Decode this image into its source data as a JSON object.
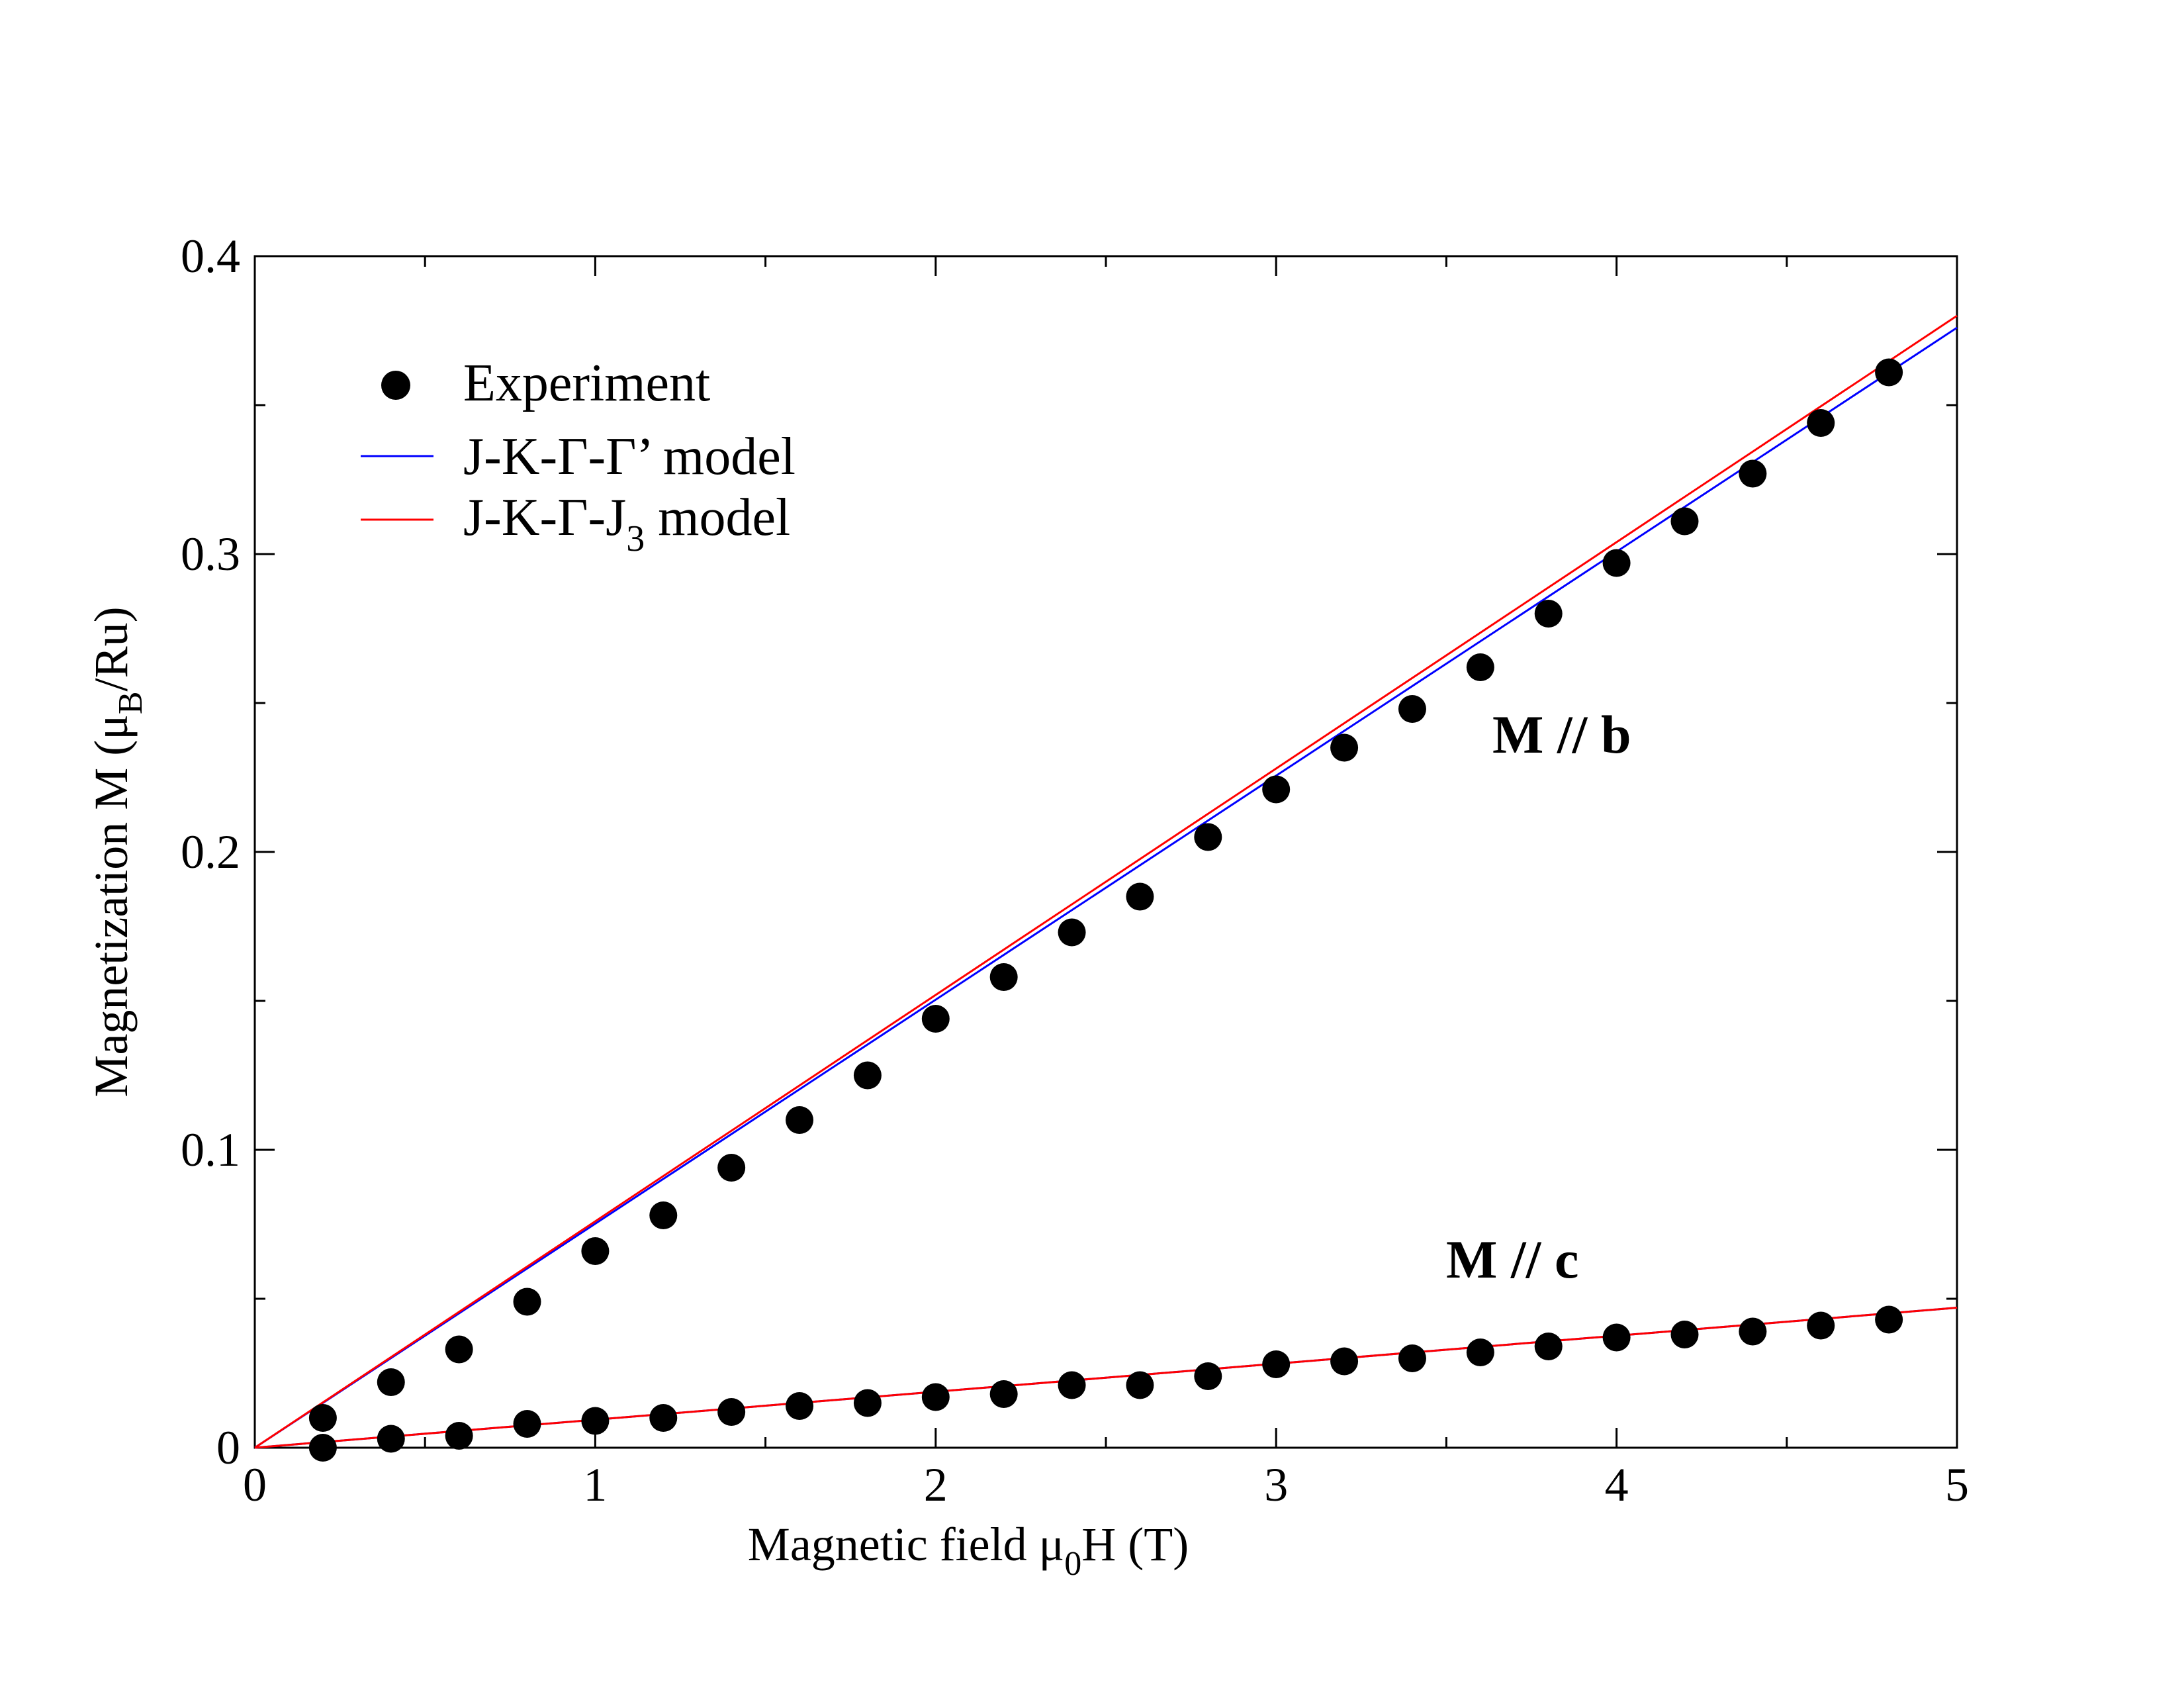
{
  "chart_data": {
    "type": "scatter",
    "title": "",
    "xlabel": "Magnetic field μ0H (T)",
    "xlabel_parts": [
      "Magnetic field μ",
      "0",
      "H (T)"
    ],
    "ylabel": "Magnetization M (μB/Ru)",
    "ylabel_parts": [
      "Magnetization M (μ",
      "B",
      "/Ru)"
    ],
    "xlim": [
      0,
      5
    ],
    "ylim": [
      0,
      0.4
    ],
    "x_ticks": [
      "0",
      "1",
      "2",
      "3",
      "4",
      "5"
    ],
    "y_ticks": [
      "0",
      "0.1",
      "0.2",
      "0.3",
      "0.4"
    ],
    "grid": false,
    "legend_position": "top-left",
    "legend": {
      "experiment": "Experiment",
      "model1": "J-K-Γ-Γ’ model",
      "model2_parts": [
        "J-K-Γ-J",
        "3",
        " model"
      ]
    },
    "colors": {
      "experiment": "#000000",
      "model1": "#0000ff",
      "model2": "#ff0000"
    },
    "annotations": [
      "M // b",
      "M // c"
    ],
    "x_exp": [
      0.2,
      0.4,
      0.6,
      0.8,
      1.0,
      1.2,
      1.4,
      1.6,
      1.8,
      2.0,
      2.2,
      2.4,
      2.6,
      2.8,
      3.0,
      3.2,
      3.4,
      3.6,
      3.8,
      4.0,
      4.2,
      4.4,
      4.6,
      4.8
    ],
    "series": [
      {
        "name": "Experiment M // b",
        "kind": "points",
        "values": [
          0.01,
          0.022,
          0.033,
          0.049,
          0.066,
          0.078,
          0.094,
          0.11,
          0.125,
          0.144,
          0.158,
          0.173,
          0.185,
          0.205,
          0.221,
          0.235,
          0.248,
          0.262,
          0.28,
          0.297,
          0.311,
          0.327,
          0.344,
          0.361
        ]
      },
      {
        "name": "Experiment M // c",
        "kind": "points",
        "values": [
          0.0,
          0.003,
          0.004,
          0.008,
          0.009,
          0.01,
          0.012,
          0.014,
          0.015,
          0.017,
          0.018,
          0.021,
          0.021,
          0.024,
          0.028,
          0.029,
          0.03,
          0.032,
          0.034,
          0.037,
          0.038,
          0.039,
          0.041,
          0.043
        ]
      },
      {
        "name": "J-K-Γ-Γ’ model M // b",
        "kind": "line",
        "color_key": "model1",
        "x": [
          0,
          5
        ],
        "values": [
          0,
          0.376
        ]
      },
      {
        "name": "J-K-Γ-J3 model M // b",
        "kind": "line",
        "color_key": "model2",
        "x": [
          0,
          5
        ],
        "values": [
          0,
          0.38
        ]
      },
      {
        "name": "J-K-Γ-Γ’ model M // c",
        "kind": "line",
        "color_key": "model1",
        "x": [
          0,
          5
        ],
        "values": [
          0,
          0.047
        ]
      },
      {
        "name": "J-K-Γ-J3 model M // c",
        "kind": "line",
        "color_key": "model2",
        "x": [
          0,
          5
        ],
        "values": [
          0,
          0.047
        ]
      }
    ]
  }
}
